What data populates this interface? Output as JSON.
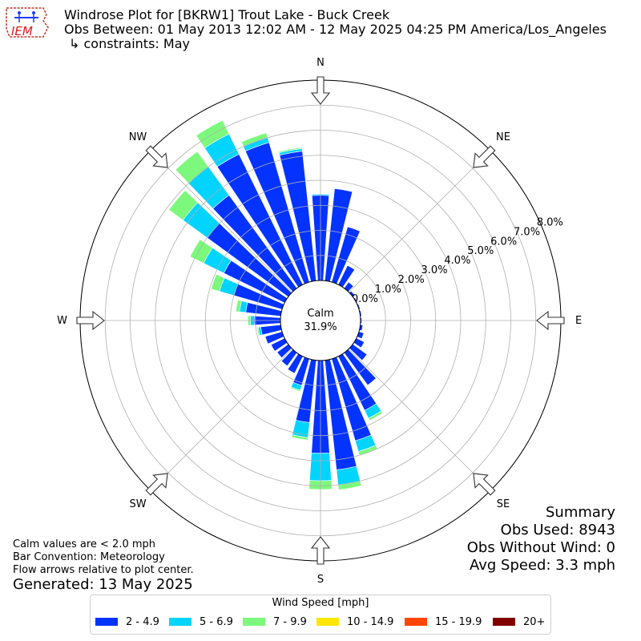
{
  "header": {
    "logo_text": "IEM",
    "title": "Windrose Plot for [BKRW1] Trout Lake - Buck Creek",
    "period": "Obs Between: 01 May 2013 12:02 AM - 12 May 2025 04:25 PM America/Los_Angeles",
    "constraints": "↳ constraints: May"
  },
  "notes": {
    "calm_note": "Calm values are < 2.0 mph",
    "convention": "Bar Convention: Meteorology",
    "flow": "Flow arrows relative to plot center.",
    "generated": "Generated: 13 May 2025"
  },
  "summary": {
    "title": "Summary",
    "obs_used": "Obs Used: 8943",
    "obs_without_wind": "Obs Without Wind: 0",
    "avg_speed": "Avg Speed: 3.3 mph"
  },
  "legend": {
    "title": "Wind Speed [mph]",
    "items": [
      {
        "label": "2 - 4.9",
        "color": "#0433ff"
      },
      {
        "label": "5 - 6.9",
        "color": "#00d4ff"
      },
      {
        "label": "7 - 9.9",
        "color": "#7cf97c"
      },
      {
        "label": "10 - 14.9",
        "color": "#ffe600"
      },
      {
        "label": "15 - 19.9",
        "color": "#ff4500"
      },
      {
        "label": "20+",
        "color": "#800000"
      }
    ]
  },
  "chart_data": {
    "type": "windrose",
    "calm": {
      "label": "Calm",
      "value": "31.9%"
    },
    "radial_ticks": [
      "0.0%",
      "1.0%",
      "2.0%",
      "3.0%",
      "4.0%",
      "5.0%",
      "6.0%",
      "7.0%",
      "8.0%"
    ],
    "radial_range": [
      0,
      8
    ],
    "compass": [
      "N",
      "NE",
      "E",
      "SE",
      "S",
      "SW",
      "W",
      "NW"
    ],
    "bin_width_deg": 10,
    "directions_deg": [
      0,
      10,
      20,
      30,
      40,
      50,
      60,
      70,
      80,
      90,
      100,
      110,
      120,
      130,
      140,
      150,
      160,
      170,
      180,
      190,
      200,
      210,
      220,
      230,
      240,
      250,
      260,
      270,
      280,
      290,
      300,
      310,
      320,
      330,
      340,
      350
    ],
    "series": [
      {
        "name": "2 - 4.9",
        "values": [
          3.4,
          3.7,
          2.3,
          0.85,
          0.3,
          0.1,
          0.05,
          0.05,
          0.05,
          0.05,
          0.1,
          0.2,
          0.35,
          0.7,
          1.6,
          2.4,
          3.4,
          4.4,
          3.7,
          2.5,
          1.1,
          0.75,
          0.65,
          0.55,
          0.6,
          0.7,
          0.8,
          1.05,
          1.4,
          2.0,
          2.7,
          4.0,
          4.6,
          5.8,
          5.8,
          5.2
        ]
      },
      {
        "name": "5 - 6.9",
        "values": [
          0.05,
          0.0,
          0.0,
          0.0,
          0.0,
          0.0,
          0.0,
          0.0,
          0.0,
          0.0,
          0.0,
          0.0,
          0.0,
          0.0,
          0.0,
          0.35,
          0.45,
          0.6,
          1.1,
          0.6,
          0.2,
          0.0,
          0.0,
          0.0,
          0.0,
          0.0,
          0.1,
          0.15,
          0.25,
          0.6,
          0.9,
          1.2,
          1.4,
          0.9,
          0.2,
          0.1
        ]
      },
      {
        "name": "7 - 9.9",
        "values": [
          0.0,
          0.0,
          0.0,
          0.0,
          0.0,
          0.0,
          0.0,
          0.0,
          0.0,
          0.0,
          0.0,
          0.0,
          0.0,
          0.0,
          0.0,
          0.1,
          0.15,
          0.2,
          0.35,
          0.1,
          0.05,
          0.0,
          0.0,
          0.0,
          0.0,
          0.0,
          0.05,
          0.1,
          0.15,
          0.35,
          0.6,
          0.7,
          0.75,
          0.6,
          0.2,
          0.05
        ]
      },
      {
        "name": "10 - 14.9",
        "values": [
          0,
          0,
          0,
          0,
          0,
          0,
          0,
          0,
          0,
          0,
          0,
          0,
          0,
          0,
          0,
          0,
          0,
          0,
          0,
          0,
          0,
          0,
          0,
          0,
          0,
          0,
          0,
          0,
          0,
          0,
          0,
          0,
          0,
          0,
          0,
          0
        ]
      },
      {
        "name": "15 - 19.9",
        "values": [
          0,
          0,
          0,
          0,
          0,
          0,
          0,
          0,
          0,
          0,
          0,
          0,
          0,
          0,
          0,
          0,
          0,
          0,
          0,
          0,
          0,
          0,
          0,
          0,
          0,
          0,
          0,
          0,
          0,
          0,
          0,
          0,
          0,
          0,
          0,
          0
        ]
      },
      {
        "name": "20+",
        "values": [
          0,
          0,
          0,
          0,
          0,
          0,
          0,
          0,
          0,
          0,
          0,
          0,
          0,
          0,
          0,
          0,
          0,
          0,
          0,
          0,
          0,
          0,
          0,
          0,
          0,
          0,
          0,
          0,
          0,
          0,
          0,
          0,
          0,
          0,
          0,
          0
        ]
      }
    ]
  }
}
